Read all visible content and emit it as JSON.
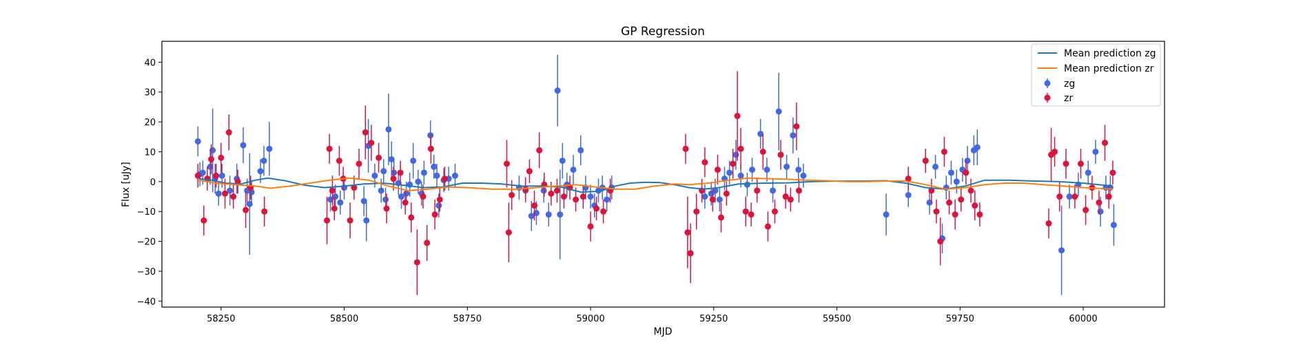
{
  "chart_data": {
    "type": "scatter",
    "title": "GP Regression",
    "xlabel": "MJD",
    "ylabel": "Flux [uJy]",
    "xlim": [
      58130,
      60165
    ],
    "ylim": [
      -42,
      47
    ],
    "xticks": [
      58250,
      58500,
      58750,
      59000,
      59250,
      59500,
      59750,
      60000
    ],
    "yticks": [
      -40,
      -30,
      -20,
      -10,
      0,
      10,
      20,
      30,
      40
    ],
    "grid": false,
    "legend_position": "top-right",
    "series": [
      {
        "name": "Mean prediction zg",
        "kind": "line",
        "color": "#1f77b4",
        "x": [
          58205,
          58230,
          58260,
          58290,
          58320,
          58345,
          58380,
          58420,
          58460,
          58500,
          58540,
          58580,
          58620,
          58660,
          58700,
          58740,
          58780,
          58820,
          58860,
          58900,
          58940,
          58980,
          59020,
          59050,
          59080,
          59110,
          59140,
          59170,
          59200,
          59230,
          59260,
          59300,
          59350,
          59400,
          59450,
          59500,
          59550,
          59600,
          59640,
          59680,
          59720,
          59760,
          59800,
          59850,
          59900,
          59950,
          60000,
          60060
        ],
        "y": [
          1.0,
          0.5,
          -0.5,
          -0.8,
          0.5,
          1.2,
          0.3,
          -1.2,
          -2.0,
          -1.5,
          -0.8,
          -0.5,
          -1.2,
          -2.0,
          -1.8,
          -0.5,
          -0.5,
          -0.8,
          -1.5,
          -1.5,
          -1.8,
          -3.5,
          -3.2,
          -1.5,
          -0.5,
          -0.2,
          -0.3,
          -1.0,
          -2.0,
          -2.5,
          -2.0,
          -0.8,
          -0.5,
          -0.4,
          0.0,
          0.2,
          0.2,
          0.3,
          -0.5,
          -2.0,
          -2.5,
          -1.5,
          0.5,
          0.5,
          0.2,
          0.0,
          -0.5,
          -1.5
        ]
      },
      {
        "name": "Mean prediction zr",
        "kind": "line",
        "color": "#ff7f0e",
        "x": [
          58205,
          58240,
          58280,
          58320,
          58350,
          58390,
          58430,
          58470,
          58510,
          58550,
          58590,
          58630,
          58670,
          58710,
          58750,
          58800,
          58850,
          58890,
          58930,
          58970,
          59010,
          59050,
          59090,
          59130,
          59170,
          59200,
          59240,
          59280,
          59320,
          59360,
          59400,
          59440,
          59480,
          59520,
          59560,
          59600,
          59640,
          59680,
          59720,
          59760,
          59800,
          59840,
          59880,
          59920,
          59960,
          60000,
          60060
        ],
        "y": [
          0.5,
          -0.5,
          -1.0,
          -1.5,
          -2.2,
          -1.5,
          -0.5,
          0.5,
          1.2,
          0.5,
          -1.5,
          -3.0,
          -2.5,
          -1.8,
          -2.0,
          -2.5,
          -2.5,
          -2.0,
          -1.5,
          -1.0,
          -1.8,
          -2.5,
          -2.5,
          -1.5,
          -0.8,
          -1.0,
          -0.5,
          0.5,
          1.2,
          1.0,
          0.8,
          0.5,
          0.3,
          0.0,
          0.0,
          0.2,
          0.2,
          -1.0,
          -2.5,
          -2.0,
          -1.0,
          -0.5,
          -0.5,
          -1.0,
          -1.5,
          -2.0,
          -2.5
        ]
      },
      {
        "name": "zg",
        "kind": "errorbar",
        "color": "#4169e1",
        "points": [
          [
            58203,
            13.5,
            5
          ],
          [
            58207,
            2.5,
            4
          ],
          [
            58213,
            3,
            4
          ],
          [
            58228,
            5,
            6
          ],
          [
            58233,
            10.5,
            14
          ],
          [
            58238,
            1,
            5
          ],
          [
            58245,
            -4,
            4
          ],
          [
            58252,
            2,
            4
          ],
          [
            58268,
            -3,
            5
          ],
          [
            58282,
            1,
            5
          ],
          [
            58295,
            12.2,
            6
          ],
          [
            58303,
            -3,
            4
          ],
          [
            58308,
            -7.5,
            17
          ],
          [
            58312,
            -3.5,
            4
          ],
          [
            58330,
            3.5,
            4
          ],
          [
            58337,
            7,
            5
          ],
          [
            58348,
            11,
            9
          ],
          [
            58472,
            -6,
            4
          ],
          [
            58482,
            -5,
            4
          ],
          [
            58492,
            -7,
            4
          ],
          [
            58500,
            -2,
            4
          ],
          [
            58540,
            -6.5,
            5
          ],
          [
            58545,
            -13,
            7
          ],
          [
            58549,
            12,
            9
          ],
          [
            58562,
            2,
            4
          ],
          [
            58575,
            -3,
            4
          ],
          [
            58580,
            3.5,
            4
          ],
          [
            58584,
            -6,
            4
          ],
          [
            58590,
            17.5,
            12
          ],
          [
            58596,
            7.5,
            6
          ],
          [
            58601,
            3,
            4
          ],
          [
            58610,
            -0.5,
            4
          ],
          [
            58616,
            -5,
            4
          ],
          [
            58626,
            -4,
            4
          ],
          [
            58633,
            -1,
            4
          ],
          [
            58640,
            7,
            6
          ],
          [
            58650,
            0,
            4
          ],
          [
            58657,
            -4,
            4
          ],
          [
            58662,
            3,
            4
          ],
          [
            58675,
            15.5,
            5
          ],
          [
            58682,
            5,
            4
          ],
          [
            58688,
            2,
            4
          ],
          [
            58692,
            -8,
            4
          ],
          [
            58702,
            0.5,
            4
          ],
          [
            58712,
            1,
            4
          ],
          [
            58725,
            2,
            4
          ],
          [
            58855,
            -2,
            4
          ],
          [
            58868,
            -3,
            4
          ],
          [
            58880,
            -11.5,
            5
          ],
          [
            58890,
            -10.5,
            4
          ],
          [
            58905,
            -3,
            4
          ],
          [
            58915,
            -11,
            4
          ],
          [
            58933,
            30.5,
            12
          ],
          [
            58938,
            -11,
            15
          ],
          [
            58943,
            7,
            6
          ],
          [
            58952,
            -1,
            4
          ],
          [
            58965,
            4,
            5
          ],
          [
            58980,
            10.5,
            5
          ],
          [
            58990,
            -2,
            4
          ],
          [
            59000,
            -5,
            4
          ],
          [
            59008,
            -8,
            4
          ],
          [
            59016,
            -3,
            4
          ],
          [
            59024,
            -2,
            4
          ],
          [
            59033,
            -6,
            4
          ],
          [
            59043,
            -2,
            4
          ],
          [
            59232,
            -5,
            4
          ],
          [
            59245,
            -4,
            4
          ],
          [
            59253,
            -3,
            4
          ],
          [
            59262,
            -6,
            4
          ],
          [
            59272,
            1,
            4
          ],
          [
            59282,
            3,
            4
          ],
          [
            59295,
            9,
            5
          ],
          [
            59305,
            2,
            4
          ],
          [
            59318,
            -1,
            4
          ],
          [
            59328,
            4,
            4
          ],
          [
            59345,
            16,
            5
          ],
          [
            59358,
            4,
            4
          ],
          [
            59370,
            -3,
            4
          ],
          [
            59382,
            23.5,
            13
          ],
          [
            59398,
            5,
            4
          ],
          [
            59411,
            15.5,
            6
          ],
          [
            59422,
            4,
            4
          ],
          [
            59432,
            2,
            4
          ],
          [
            59600,
            -11,
            7
          ],
          [
            59645,
            -4.5,
            4
          ],
          [
            59680,
            7,
            4
          ],
          [
            59688,
            -7,
            4
          ],
          [
            59700,
            5,
            4
          ],
          [
            59714,
            -19,
            5
          ],
          [
            59722,
            -2,
            4
          ],
          [
            59732,
            3,
            4
          ],
          [
            59743,
            0,
            4
          ],
          [
            59755,
            4,
            4
          ],
          [
            59765,
            7,
            5
          ],
          [
            59778,
            10.5,
            5
          ],
          [
            59785,
            11.5,
            6
          ],
          [
            59956,
            -23,
            15
          ],
          [
            59972,
            -5,
            4
          ],
          [
            59990,
            -1,
            4
          ],
          [
            60010,
            3,
            4
          ],
          [
            60025,
            10,
            4
          ],
          [
            60035,
            -10,
            5
          ],
          [
            60046,
            -2,
            4
          ],
          [
            60055,
            -2,
            4
          ],
          [
            60062,
            -14.5,
            7
          ]
        ]
      },
      {
        "name": "zr",
        "kind": "errorbar",
        "color": "#dc143c",
        "points": [
          [
            58203,
            2,
            4
          ],
          [
            58215,
            -13,
            5
          ],
          [
            58222,
            1,
            4
          ],
          [
            58230,
            7.5,
            5
          ],
          [
            58240,
            2,
            4
          ],
          [
            58250,
            8,
            5
          ],
          [
            58258,
            -4,
            5
          ],
          [
            58266,
            16.5,
            6
          ],
          [
            58275,
            -5,
            4
          ],
          [
            58284,
            0,
            4
          ],
          [
            58300,
            -9.5,
            6
          ],
          [
            58310,
            -2,
            4
          ],
          [
            58338,
            -10,
            5
          ],
          [
            58465,
            -13,
            8
          ],
          [
            58470,
            11,
            5
          ],
          [
            58476,
            -3,
            5
          ],
          [
            58480,
            -9,
            4
          ],
          [
            58490,
            7,
            5
          ],
          [
            58498,
            1,
            4
          ],
          [
            58512,
            -13,
            6
          ],
          [
            58520,
            -2,
            4
          ],
          [
            58530,
            6,
            5
          ],
          [
            58543,
            16.5,
            9
          ],
          [
            58555,
            13,
            6
          ],
          [
            58570,
            8,
            5
          ],
          [
            58586,
            -9,
            5
          ],
          [
            58600,
            1,
            4
          ],
          [
            58614,
            3,
            4
          ],
          [
            58624,
            -7,
            4
          ],
          [
            58636,
            -12,
            5
          ],
          [
            58648,
            -27,
            11
          ],
          [
            58660,
            -5,
            4
          ],
          [
            58668,
            -20.5,
            6
          ],
          [
            58676,
            11,
            5
          ],
          [
            58684,
            -11,
            5
          ],
          [
            58694,
            -6,
            4
          ],
          [
            58704,
            1,
            4
          ],
          [
            58830,
            6,
            8
          ],
          [
            58834,
            -17,
            10
          ],
          [
            58840,
            -4.5,
            5
          ],
          [
            58868,
            -2.5,
            4
          ],
          [
            58876,
            3.5,
            4
          ],
          [
            58886,
            -8,
            5
          ],
          [
            58896,
            10.5,
            6
          ],
          [
            58906,
            -1,
            4
          ],
          [
            58920,
            -4,
            4
          ],
          [
            58932,
            -3,
            4
          ],
          [
            58946,
            -5,
            4
          ],
          [
            58958,
            -2,
            4
          ],
          [
            58970,
            -6,
            4
          ],
          [
            58985,
            -5,
            4
          ],
          [
            59000,
            -15,
            5
          ],
          [
            59012,
            -9,
            4
          ],
          [
            59026,
            -10,
            4
          ],
          [
            59040,
            -3,
            4
          ],
          [
            59193,
            11,
            5
          ],
          [
            59197,
            -17,
            12
          ],
          [
            59203,
            -24,
            10
          ],
          [
            59215,
            -10,
            6
          ],
          [
            59226,
            -3,
            4
          ],
          [
            59232,
            6.5,
            5
          ],
          [
            59248,
            -6,
            4
          ],
          [
            59258,
            4,
            5
          ],
          [
            59265,
            -12,
            5
          ],
          [
            59276,
            -4,
            4
          ],
          [
            59289,
            6,
            5
          ],
          [
            59298,
            22,
            15
          ],
          [
            59305,
            11,
            7
          ],
          [
            59315,
            -10,
            5
          ],
          [
            59326,
            -11,
            4
          ],
          [
            59338,
            -3,
            4
          ],
          [
            59350,
            10,
            6
          ],
          [
            59360,
            -15,
            5
          ],
          [
            59374,
            -10,
            4
          ],
          [
            59386,
            9,
            5
          ],
          [
            59396,
            -5,
            4
          ],
          [
            59406,
            -6,
            4
          ],
          [
            59418,
            18.5,
            8
          ],
          [
            59423,
            -3,
            4
          ],
          [
            59645,
            1,
            4
          ],
          [
            59680,
            7,
            4
          ],
          [
            59692,
            -3,
            4
          ],
          [
            59702,
            -10,
            4
          ],
          [
            59710,
            -20,
            8
          ],
          [
            59718,
            10,
            5
          ],
          [
            59728,
            -7,
            4
          ],
          [
            59740,
            -11,
            5
          ],
          [
            59752,
            -6,
            4
          ],
          [
            59762,
            3,
            4
          ],
          [
            59772,
            -3,
            4
          ],
          [
            59780,
            -8,
            5
          ],
          [
            59790,
            -11,
            4
          ],
          [
            59930,
            -14,
            5
          ],
          [
            59935,
            9,
            9
          ],
          [
            59942,
            10,
            5
          ],
          [
            59952,
            -5,
            5
          ],
          [
            59965,
            6,
            5
          ],
          [
            59983,
            -5,
            4
          ],
          [
            59995,
            6,
            5
          ],
          [
            60005,
            -9.5,
            5
          ],
          [
            60018,
            -2,
            4
          ],
          [
            60032,
            -7,
            4
          ],
          [
            60044,
            13,
            6
          ],
          [
            60052,
            -5,
            4
          ],
          [
            60060,
            3,
            4
          ]
        ]
      }
    ]
  }
}
